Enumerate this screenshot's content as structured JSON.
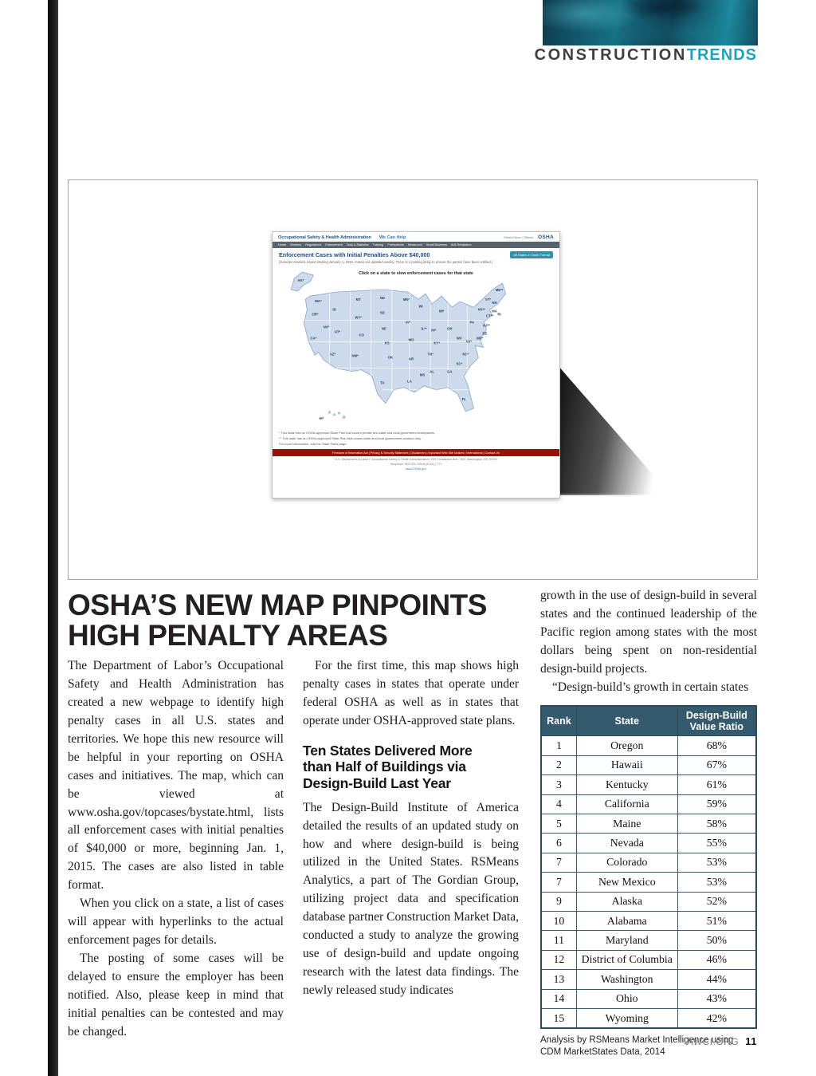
{
  "header": {
    "brand_dark": "CONSTRUCTION",
    "brand_accent": "TRENDS"
  },
  "footer": {
    "site": "AWCI.ORG",
    "page_number": "11"
  },
  "screenshot": {
    "site_name": "Occupational Safety & Health Administration",
    "help_link": "We Can Help",
    "utility_links": "What’s New | Offices",
    "logo": "OSHA",
    "nav_items": [
      "Home",
      "Workers",
      "Regulations",
      "Enforcement",
      "Data & Statistics",
      "Training",
      "Publications",
      "Newsroom",
      "Small Business",
      "Anti-Retaliation"
    ],
    "title": "Enforcement Cases with Initial Penalties Above $40,000",
    "subtitle": "(Includes citations issued starting January 1, 2015. Cases are updated weekly. There is a posting delay to ensure the parties have been notified.)",
    "table_format_button": "All States in Table Format",
    "map_instruction": "Click on a state to view enforcement cases for that state",
    "map_labels": [
      "AK*",
      "WA*",
      "OR*",
      "CA*",
      "NV*",
      "ID",
      "MT",
      "WY*",
      "UT*",
      "AZ*",
      "CO",
      "NM*",
      "ND",
      "SD",
      "NE",
      "KS",
      "OK",
      "TX",
      "MN*",
      "IA*",
      "MO",
      "AR",
      "LA",
      "WI",
      "IL**",
      "MS",
      "AL",
      "TN*",
      "KY*",
      "IN*",
      "MI*",
      "OH",
      "GA",
      "FL",
      "SC*",
      "NC*",
      "VA*",
      "WV",
      "PA",
      "NY**",
      "ME**",
      "VT*",
      "NH",
      "MA",
      "CT**",
      "RI",
      "NJ**",
      "DE",
      "MD*",
      "HI*"
    ],
    "footnote_1": "* This state has an OSHA-approved State Plan that covers private and state and local government workplaces.",
    "footnote_2": "** This state has an OSHA-approved State Plan that covers state and local government workers only.",
    "footnote_3": "For more information, visit the State Plans page.",
    "footer_links": "Freedom of Information Act  |  Privacy & Security Statement  |  Disclaimers  |  Important Web Site Notices  |  International  |  Contact Us",
    "address_line_1": "U.S. Department of Labor | Occupational Safety & Health Administration | 200 Constitution Ave., NW, Washington, DC 20210",
    "address_line_2": "Telephone: 800-321-OSHA (6742) | TTY",
    "address_line_3": "www.OSHA.gov"
  },
  "article": {
    "headline_line_1": "OSHA’S NEW MAP PINPOINTS",
    "headline_line_2": "HIGH PENALTY AREAS",
    "col1_paragraphs": [
      "The Department of Labor’s Occupational Safety and Health Administration has created a new webpage to identify high penalty cases in all U.S. states and territories. We hope this new resource will be helpful in your reporting on OSHA cases and initiatives. The map, which can be viewed at www.osha.gov/topcases/bystate.html, lists all enforcement cases with initial penalties of $40,000 or more, beginning Jan. 1, 2015. The cases are also listed in table format.",
      "When you click on a state, a list of cases will appear with hyperlinks to the actual enforcement pages for details.",
      "The posting of some cases will be delayed to ensure the employer has been notified. Also, please keep in mind that initial penalties can be contested and may be changed."
    ],
    "col2_intro": "For the first time, this map shows high penalty cases in states that operate under federal OSHA as well as in states that operate under OSHA-approved state plans.",
    "subhead": "Ten States Delivered More than Half of Buildings via Design-Build Last Year",
    "col2_body": "The Design-Build Institute of America detailed the results of an updated study on how and where design-build is being utilized in the United States. RSMeans Analytics, a part of The Gordian Group, utilizing project data and specification database partner Construction Market Data, conducted a study to analyze the growing use of design-build and update ongoing research with the latest data findings. The newly released study indicates",
    "col3_continuation": "growth in the use of design-build in several states and the continued leadership of the Pacific region among states with the most dollars being spent on non-residential design-build projects.",
    "col3_quote": "“Design-build’s growth in certain states"
  },
  "table": {
    "headers": [
      "Rank",
      "State",
      "Design-Build Value Ratio"
    ],
    "rows": [
      [
        "1",
        "Oregon",
        "68%"
      ],
      [
        "2",
        "Hawaii",
        "67%"
      ],
      [
        "3",
        "Kentucky",
        "61%"
      ],
      [
        "4",
        "California",
        "59%"
      ],
      [
        "5",
        "Maine",
        "58%"
      ],
      [
        "6",
        "Nevada",
        "55%"
      ],
      [
        "7",
        "Colorado",
        "53%"
      ],
      [
        "7",
        "New Mexico",
        "53%"
      ],
      [
        "9",
        "Alaska",
        "52%"
      ],
      [
        "10",
        "Alabama",
        "51%"
      ],
      [
        "11",
        "Maryland",
        "50%"
      ],
      [
        "12",
        "District of Columbia",
        "46%"
      ],
      [
        "13",
        "Washington",
        "44%"
      ],
      [
        "14",
        "Ohio",
        "43%"
      ],
      [
        "15",
        "Wyoming",
        "42%"
      ]
    ],
    "caption": "Analysis by RSMeans Market Intelligence using CDM MarketStates Data, 2014"
  }
}
